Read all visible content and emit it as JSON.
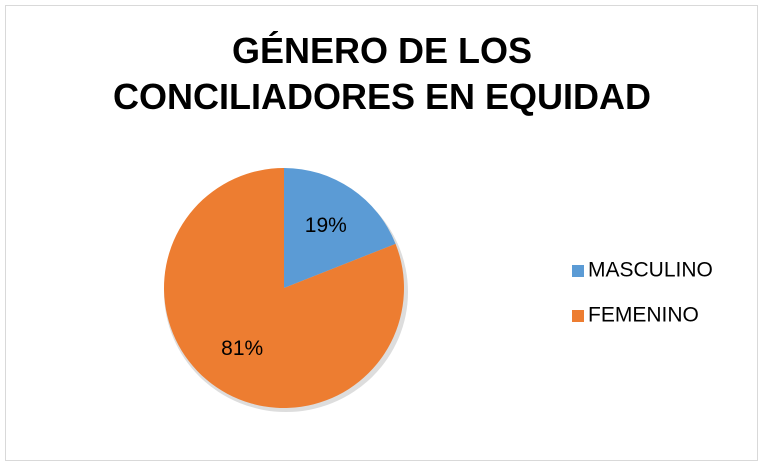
{
  "chart_data": {
    "type": "pie",
    "title": "GÉNERO DE LOS CONCILIADORES EN EQUIDAD",
    "categories": [
      "MASCULINO",
      "FEMENINO"
    ],
    "values": [
      19,
      81
    ],
    "value_labels": [
      "19%",
      "81%"
    ],
    "colors": [
      "#5b9bd5",
      "#ed7d31"
    ],
    "legend": "right"
  }
}
